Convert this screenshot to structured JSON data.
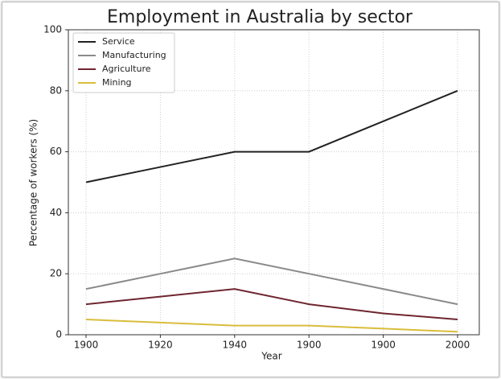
{
  "chart_data": {
    "type": "line",
    "title": "Employment in Australia by sector",
    "x_label": "Year",
    "y_label": "Percentage of workers (%)",
    "categories": [
      "1900",
      "1920",
      "1940",
      "1900",
      "1900",
      "2000"
    ],
    "series": [
      {
        "name": "Service",
        "color": "#222222",
        "values": [
          50,
          55,
          60,
          60,
          70,
          80
        ]
      },
      {
        "name": "Manufacturing",
        "color": "#8a8a8a",
        "values": [
          15,
          20,
          25,
          20,
          15,
          10
        ]
      },
      {
        "name": "Agriculture",
        "color": "#6e2630",
        "values": [
          10,
          12.5,
          15,
          10,
          7,
          5
        ]
      },
      {
        "name": "Mining",
        "color": "#d9bd3c",
        "values": [
          5,
          4,
          3,
          3,
          2,
          1
        ]
      }
    ],
    "ylim": [
      0,
      100
    ],
    "yticks": [
      0,
      20,
      40,
      60,
      80,
      100
    ],
    "grid": true,
    "legend": "upper left"
  }
}
